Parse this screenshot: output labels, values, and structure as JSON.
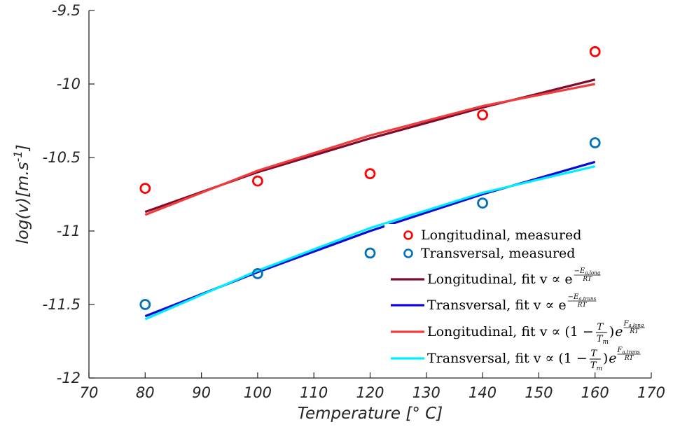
{
  "chart_data": {
    "type": "line",
    "title": "",
    "xlabel": "Temperature [° C]",
    "ylabel_parts": {
      "main": "log(v)[m.s",
      "sup": "-1",
      "end": "]"
    },
    "xlim": [
      70,
      170
    ],
    "ylim": [
      -12,
      -9.5
    ],
    "xticks": [
      70,
      80,
      90,
      100,
      110,
      120,
      130,
      140,
      150,
      160,
      170
    ],
    "yticks": [
      -12,
      -11.5,
      -11,
      -10.5,
      -10,
      -9.5
    ],
    "grid": false,
    "legend_position": "bottom-right",
    "series": [
      {
        "name": "Longitudinal, measured",
        "kind": "scatter",
        "color": "#ff0000",
        "x": [
          80,
          100,
          120,
          140,
          160
        ],
        "y": [
          -10.71,
          -10.66,
          -10.61,
          -10.21,
          -9.78
        ]
      },
      {
        "name": "Transversal, measured",
        "kind": "scatter",
        "color": "#0072bd",
        "x": [
          80,
          100,
          120,
          140,
          160
        ],
        "y": [
          -11.5,
          -11.29,
          -11.15,
          -10.81,
          -10.4
        ]
      },
      {
        "name": "Longitudinal, fit v ∝ e",
        "kind": "line",
        "color": "#7e0b2e",
        "exp_num": "−E",
        "exp_num_sub": "a,long",
        "exp_den": "RT",
        "x": [
          80,
          100,
          120,
          140,
          160
        ],
        "y": [
          -10.87,
          -10.6,
          -10.37,
          -10.16,
          -9.97
        ]
      },
      {
        "name": "Transversal, fit v ∝ e",
        "kind": "line",
        "color": "#0a0ad6",
        "exp_num": "−E",
        "exp_num_sub": "a,trans",
        "exp_den": "RT",
        "x": [
          80,
          100,
          120,
          140,
          160
        ],
        "y": [
          -11.58,
          -11.28,
          -11.0,
          -10.75,
          -10.53
        ]
      },
      {
        "name": "Longitudinal, fit v ∝ (1 − ",
        "kind": "line",
        "color": "#f03c3c",
        "frac_num": "T",
        "frac_den": "T",
        "frac_den_sub": "m",
        "exp_num": "F",
        "exp_num_sub": "a,long",
        "exp_den": "RT",
        "x": [
          80,
          100,
          120,
          140,
          160
        ],
        "y": [
          -10.89,
          -10.59,
          -10.35,
          -10.15,
          -10.0
        ]
      },
      {
        "name": "Transversal, fit v ∝ (1 − ",
        "kind": "line",
        "color": "#00eeff",
        "frac_num": "T",
        "frac_den": "T",
        "frac_den_sub": "m",
        "exp_num": "F",
        "exp_num_sub": "a,trans",
        "exp_den": "RT",
        "x": [
          80,
          100,
          120,
          140,
          160
        ],
        "y": [
          -11.6,
          -11.27,
          -10.98,
          -10.74,
          -10.56
        ]
      }
    ]
  }
}
